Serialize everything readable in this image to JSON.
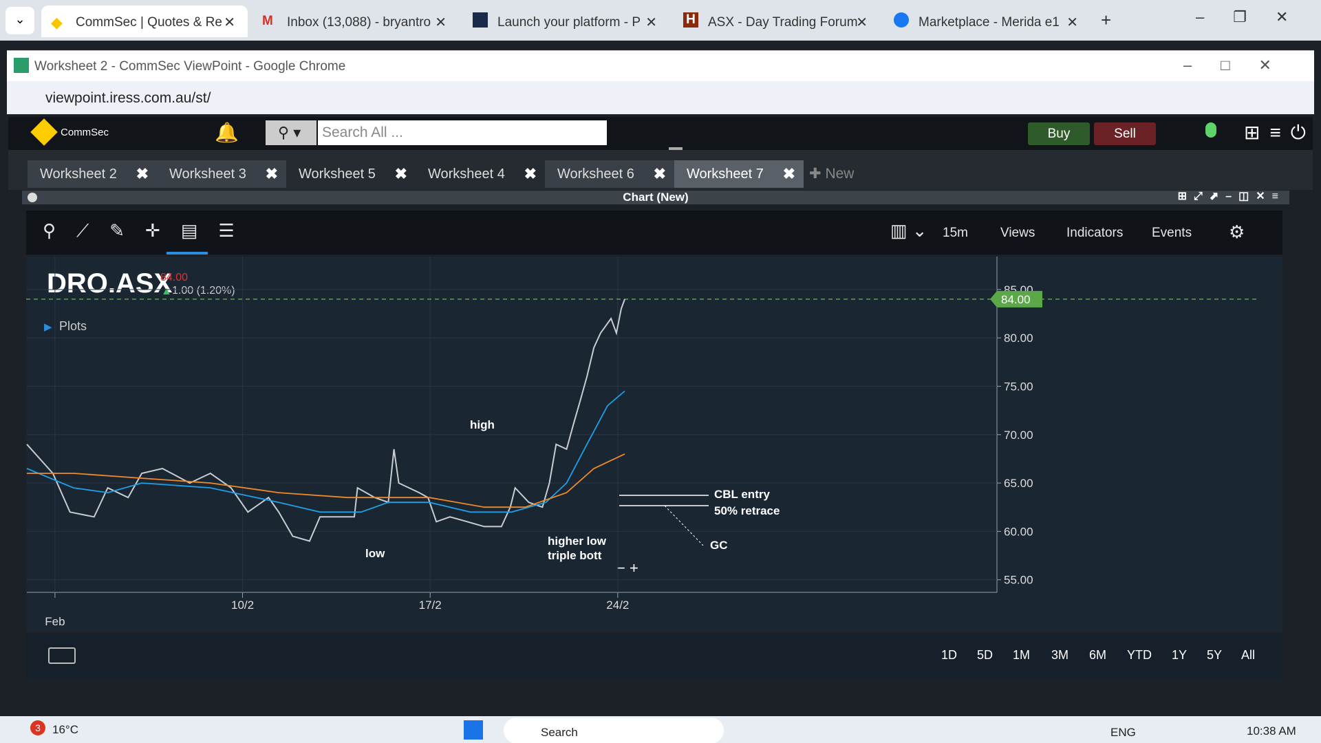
{
  "browser": {
    "tabs": [
      "CommSec | Quotes & Re",
      "Inbox (13,088) - bryantro",
      "Launch your platform - P",
      "ASX - Day Trading Forum",
      "Marketplace - Merida e1"
    ],
    "window_title": "Worksheet 2 - CommSec ViewPoint - Google Chrome",
    "url": "viewpoint.iress.com.au/st/"
  },
  "app": {
    "brand": "CommSec",
    "search_placeholder": "Search All ...",
    "buy": "Buy",
    "sell": "Sell",
    "worksheets": [
      "Worksheet 2",
      "Worksheet 3",
      "Worksheet 5",
      "Worksheet 4",
      "Worksheet 6",
      "Worksheet 7"
    ],
    "new_tab": "New",
    "panel_title": "Chart (New)",
    "toolbar": [
      "15m",
      "Views",
      "Indicators",
      "Events"
    ],
    "ranges": [
      "1D",
      "5D",
      "1M",
      "3M",
      "6M",
      "YTD",
      "1Y",
      "5Y",
      "All"
    ]
  },
  "chart_data": {
    "type": "line",
    "title": "DRO.ASX",
    "last_price": {
      "value": 84,
      "label": "84.00"
    },
    "change": "1.00 (1.20%)",
    "plots_label": "Plots",
    "annotations": [
      "high",
      "low",
      "higher low",
      "triple bott",
      "CBL entry",
      "50% retrace",
      "GC"
    ],
    "xlim": [
      -1.05,
      35.15
    ],
    "xticks": [
      {
        "value": 0,
        "label": "Feb"
      },
      {
        "value": 7,
        "label": "10/2"
      },
      {
        "value": 14,
        "label": "17/2"
      },
      {
        "value": 21,
        "label": "24/2"
      }
    ],
    "ylim": [
      53.7,
      88.4
    ],
    "yticks": [
      {
        "value": 55,
        "label": "55.00"
      },
      {
        "value": 60,
        "label": "60.00"
      },
      {
        "value": 65,
        "label": "65.00"
      },
      {
        "value": 70,
        "label": "70.00"
      },
      {
        "value": 75,
        "label": "75.00"
      },
      {
        "value": 80,
        "label": "80.00"
      },
      {
        "value": 85,
        "label": "85.00"
      }
    ],
    "grid": true,
    "series": [
      {
        "color": "#c9cdd2",
        "x": [
          -1.05,
          -0.08,
          0.56,
          1.46,
          1.97,
          2.73,
          3.24,
          4.01,
          5.03,
          5.8,
          6.57,
          7.2,
          7.97,
          8.35,
          8.87,
          9.5,
          9.89,
          11.17,
          11.29,
          11.93,
          12.44,
          12.65,
          12.83,
          13.59,
          13.92,
          14.23,
          14.74,
          15.38,
          16.02,
          16.66,
          16.99,
          17.17,
          17.68,
          18.19,
          18.45,
          18.7,
          19.09,
          19.34,
          19.6,
          19.85,
          20.11,
          20.36,
          20.75,
          20.95,
          21.13,
          21.26
        ],
        "values": [
          69,
          66,
          62,
          61.5,
          64.5,
          63.5,
          66,
          66.5,
          65,
          66,
          64.5,
          62,
          63.5,
          62,
          59.5,
          59,
          61.5,
          61.5,
          64.5,
          63.5,
          63,
          68.5,
          65,
          64,
          63.5,
          61,
          61.5,
          61,
          60.5,
          60.5,
          62.5,
          64.5,
          63,
          62.5,
          65,
          69,
          68.5,
          71,
          73.5,
          76,
          79,
          80.5,
          82,
          80.5,
          83,
          84
        ]
      },
      {
        "color": "#1ea0e6",
        "x": [
          -1.05,
          0.69,
          1.97,
          3.24,
          5.8,
          8.35,
          9.89,
          11.42,
          12.44,
          13.97,
          15.5,
          17.04,
          18.32,
          19.09,
          19.85,
          20.62,
          21.26
        ],
        "values": [
          66.5,
          64.5,
          64,
          65,
          64.5,
          63,
          62,
          62,
          63,
          63,
          62,
          62,
          63,
          65,
          69,
          73,
          74.5
        ]
      },
      {
        "color": "#f08a24",
        "x": [
          -1.05,
          0.69,
          3.24,
          5.8,
          8.35,
          10.91,
          13.97,
          16.02,
          17.55,
          19.09,
          20.11,
          21.26
        ],
        "values": [
          66,
          66,
          65.5,
          65,
          64,
          63.5,
          63.5,
          62.5,
          62.5,
          64,
          66.5,
          68
        ]
      }
    ]
  },
  "taskbar": {
    "notification_count": "3",
    "temperature": "16°C",
    "search": "Search",
    "language": "ENG",
    "time": "10:38 AM"
  }
}
